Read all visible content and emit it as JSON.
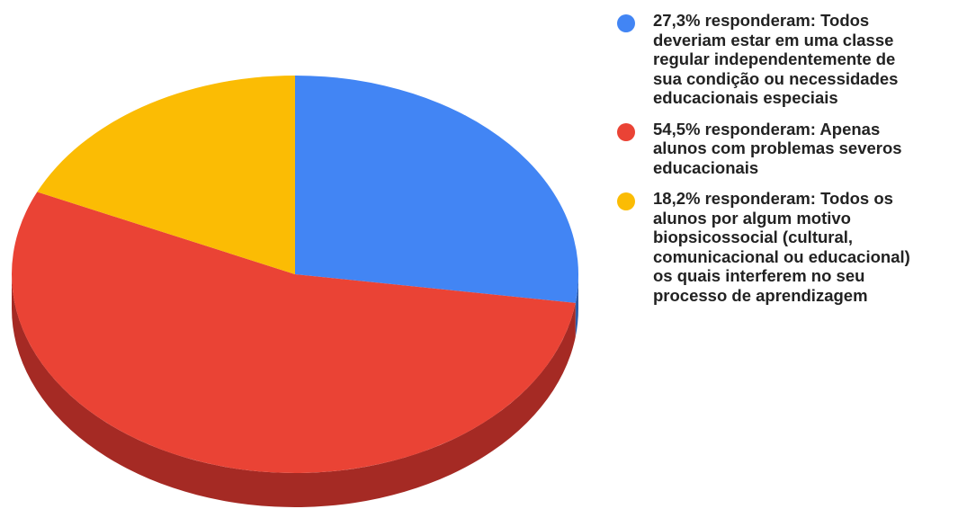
{
  "chart_data": {
    "type": "pie",
    "style": "3d",
    "title": "",
    "start_angle_deg": 0,
    "direction": "clockwise",
    "legend_position": "right",
    "slices": [
      {
        "label": "27,3% responderam: Todos deveriam estar em uma classe regular independentemente de sua condição ou necessidades educacionais especiais",
        "value": 27.3,
        "color": "#4285F4",
        "side_color": "#2E5DAA"
      },
      {
        "label": "54,5% responderam: Apenas alunos com problemas severos educacionais",
        "value": 54.5,
        "color": "#EA4335",
        "side_color": "#A52A24"
      },
      {
        "label": "18,2% responderam: Todos os alunos por algum motivo biopsicossocial  (cultural, comunicacional ou educacional) os quais interferem no seu processo de aprendizagem",
        "value": 18.2,
        "color": "#FBBC04",
        "side_color": "#B08303"
      }
    ]
  }
}
